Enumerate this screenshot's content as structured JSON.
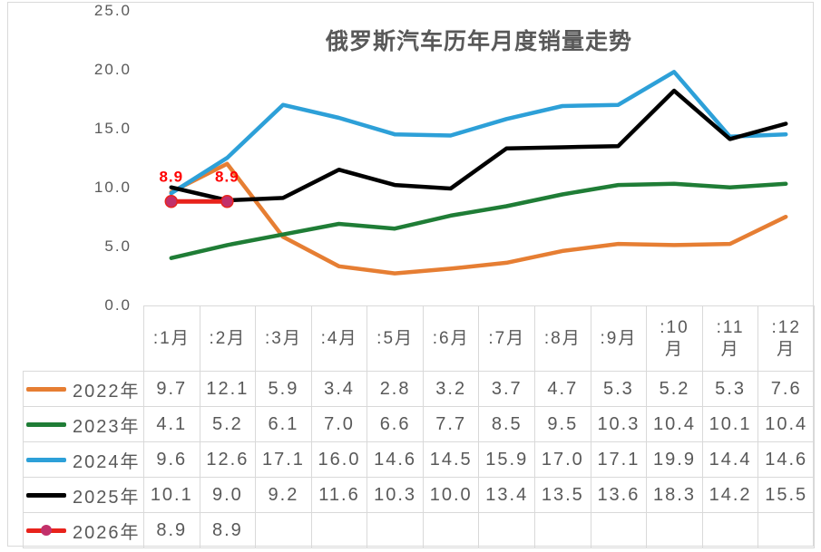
{
  "chart": {
    "title": "俄罗斯汽车历年月度销量走势"
  },
  "chart_data": {
    "type": "line",
    "title": "俄罗斯汽车历年月度销量走势",
    "categories": [
      ":1月",
      ":2月",
      ":3月",
      ":4月",
      ":5月",
      ":6月",
      ":7月",
      ":8月",
      ":9月",
      ":10月",
      ":11月",
      ":12月"
    ],
    "series": [
      {
        "name": "2022年",
        "color": "#e67e33",
        "values": [
          9.7,
          12.1,
          5.9,
          3.4,
          2.8,
          3.2,
          3.7,
          4.7,
          5.3,
          5.2,
          5.3,
          7.6
        ]
      },
      {
        "name": "2023年",
        "color": "#1f7d36",
        "values": [
          4.1,
          5.2,
          6.1,
          7.0,
          6.6,
          7.7,
          8.5,
          9.5,
          10.3,
          10.4,
          10.1,
          10.4
        ]
      },
      {
        "name": "2024年",
        "color": "#2da0d8",
        "values": [
          9.6,
          12.6,
          17.1,
          16.0,
          14.6,
          14.5,
          15.9,
          17.0,
          17.1,
          19.9,
          14.4,
          14.6
        ]
      },
      {
        "name": "2025年",
        "color": "#000000",
        "values": [
          10.1,
          9.0,
          9.2,
          11.6,
          10.3,
          10.0,
          13.4,
          13.5,
          13.6,
          18.3,
          14.2,
          15.5
        ]
      },
      {
        "name": "2026年",
        "color": "#e8231c",
        "marker": true,
        "marker_color": "#c2306a",
        "values": [
          8.9,
          8.9
        ]
      }
    ],
    "data_labels": [
      {
        "series": "2026年",
        "month": 1,
        "value": 8.9,
        "text": "8.9",
        "color": "#ff0000"
      },
      {
        "series": "2026年",
        "month": 2,
        "value": 8.9,
        "text": "8.9",
        "color": "#ff0000"
      }
    ],
    "y_ticks": [
      "25.0",
      "20.0",
      "15.0",
      "10.0",
      "5.0",
      "0.0"
    ],
    "ylim": [
      0,
      25
    ],
    "grid": false,
    "legend_position": "data-table-left-column",
    "text_color": "#595959",
    "border_color": "#d9d9d9"
  }
}
